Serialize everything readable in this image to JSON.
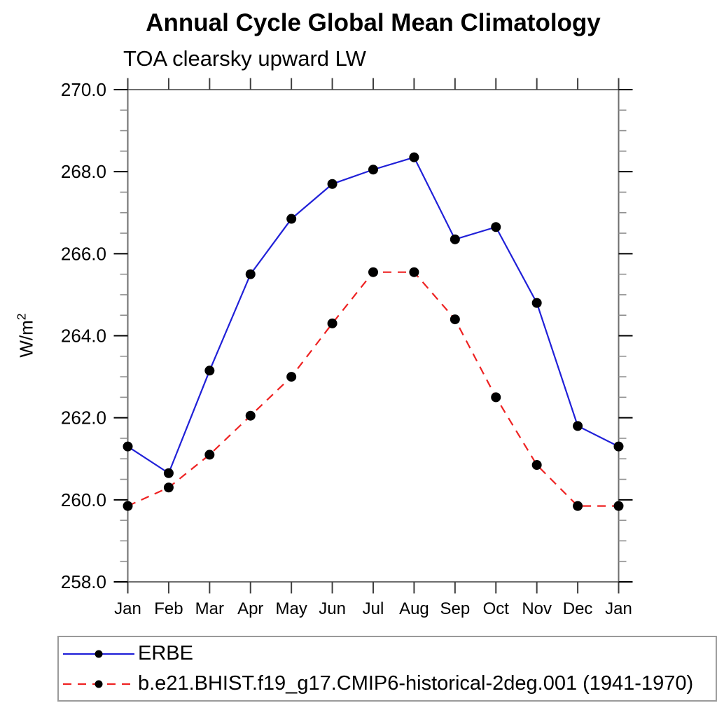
{
  "title": "Annual Cycle Global Mean Climatology",
  "subtitle": "TOA clearsky upward LW",
  "ylabel": {
    "base": "W/m",
    "exp": "2"
  },
  "chart_data": {
    "type": "line",
    "x_labels": [
      "Jan",
      "Feb",
      "Mar",
      "Apr",
      "May",
      "Jun",
      "Jul",
      "Aug",
      "Sep",
      "Oct",
      "Nov",
      "Dec",
      "Jan"
    ],
    "y_tick_labels": [
      "258.0",
      "260.0",
      "262.0",
      "264.0",
      "266.0",
      "268.0",
      "270.0"
    ],
    "ylim": [
      258.0,
      270.0
    ],
    "y_major_step": 2.0,
    "y_minor_step": 0.5,
    "grid": false,
    "legend_position": "bottom",
    "axis_color": "#6e6e6e",
    "major_tick_color": "#000000",
    "minor_tick_color": "#8f8f8f",
    "marker_color": "#000000",
    "series": [
      {
        "name": "ERBE",
        "color": "#2020d8",
        "style": "solid",
        "marker": "circle",
        "values": [
          261.3,
          260.65,
          263.15,
          265.5,
          266.85,
          267.7,
          268.05,
          268.35,
          266.35,
          266.65,
          264.8,
          261.8,
          261.3
        ]
      },
      {
        "name": "b.e21.BHIST.f19_g17.CMIP6-historical-2deg.001 (1941-1970)",
        "color": "#ee2222",
        "style": "dashed",
        "marker": "circle",
        "values": [
          259.85,
          260.3,
          261.1,
          262.05,
          263.0,
          264.3,
          265.55,
          265.55,
          264.4,
          262.5,
          260.85,
          259.85,
          259.85
        ]
      }
    ]
  }
}
